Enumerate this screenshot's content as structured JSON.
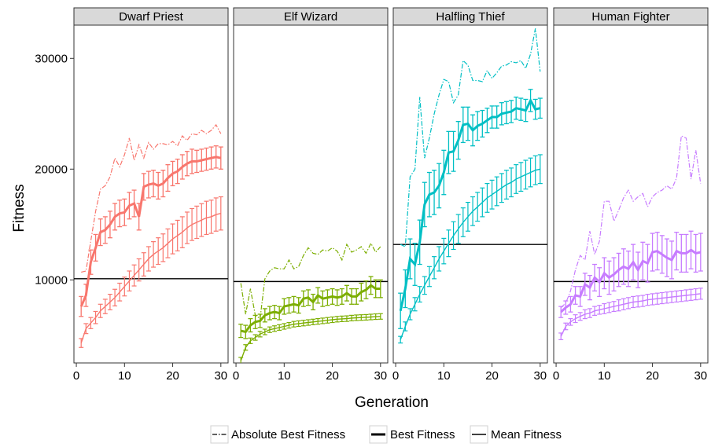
{
  "chart_data": {
    "type": "line",
    "xlabel": "Generation",
    "ylabel": "Fitness",
    "xlim": [
      -0.5,
      31.5
    ],
    "ylim": [
      2500,
      33000
    ],
    "xticks": [
      0,
      10,
      20,
      30
    ],
    "yticks": [
      10000,
      20000,
      30000
    ],
    "x_tick_labels": [
      "0",
      "10",
      "20",
      "30"
    ],
    "y_tick_labels": [
      "10000",
      "20000",
      "30000"
    ],
    "grid": false,
    "legend": {
      "position": "bottom",
      "entries": [
        {
          "label": "Absolute Best Fitness",
          "linetype": "dotdash"
        },
        {
          "label": "Best Fitness",
          "linetype": "thick"
        },
        {
          "label": "Mean Fitness",
          "linetype": "solid"
        }
      ]
    },
    "panels": [
      {
        "label": "Dwarf Priest",
        "color": "#F8766D",
        "hline": 10100,
        "absolute_best": [
          10700,
          10800,
          13500,
          16200,
          18200,
          18500,
          19300,
          21000,
          20200,
          21300,
          22800,
          20800,
          22200,
          21000,
          22400,
          21800,
          22300,
          22300,
          22200,
          22500,
          22100,
          23000,
          22600,
          23200,
          23100,
          23500,
          23200,
          23500,
          24000,
          23200
        ],
        "best": {
          "values": [
            7600,
            8600,
            11600,
            12900,
            14300,
            14500,
            15000,
            15700,
            16000,
            16100,
            16700,
            16900,
            15700,
            18400,
            18600,
            18700,
            18500,
            18700,
            19200,
            19600,
            19800,
            20200,
            20500,
            20700,
            20700,
            20800,
            20900,
            21000,
            21100,
            21000
          ],
          "err": [
            900,
            1000,
            1100,
            1200,
            1200,
            1200,
            1200,
            1200,
            1200,
            1200,
            1200,
            1200,
            1200,
            1200,
            1200,
            1200,
            1200,
            1200,
            1200,
            1100,
            1100,
            1100,
            1100,
            1100,
            1000,
            1000,
            1000,
            1000,
            1000,
            1000
          ]
        },
        "mean": {
          "values": [
            4300,
            5600,
            6100,
            6600,
            7200,
            7600,
            8000,
            8400,
            8900,
            9400,
            9900,
            10400,
            10900,
            11400,
            11900,
            12300,
            12600,
            12900,
            13300,
            13700,
            14000,
            14300,
            14700,
            15000,
            15200,
            15400,
            15600,
            15700,
            15900,
            16000
          ],
          "err": [
            400,
            450,
            500,
            550,
            600,
            650,
            700,
            750,
            800,
            850,
            900,
            950,
            1000,
            1050,
            1100,
            1150,
            1200,
            1250,
            1300,
            1350,
            1380,
            1400,
            1420,
            1440,
            1460,
            1480,
            1500,
            1500,
            1500,
            1500
          ]
        }
      },
      {
        "label": "Elf Wizard",
        "color": "#7CAE00",
        "hline": 9850,
        "absolute_best": [
          9700,
          6900,
          9200,
          6800,
          6500,
          10100,
          10800,
          11100,
          11000,
          11000,
          11800,
          11000,
          11200,
          12200,
          12900,
          12400,
          12300,
          12700,
          12600,
          12900,
          12600,
          11800,
          13200,
          12500,
          12700,
          13000,
          12400,
          13300,
          12500,
          13000
        ],
        "best": {
          "values": [
            5400,
            5300,
            5900,
            6200,
            6300,
            6800,
            7000,
            7100,
            7000,
            7600,
            7700,
            7800,
            7700,
            8300,
            8400,
            8000,
            8600,
            8300,
            8400,
            8500,
            8400,
            8500,
            8800,
            8500,
            8500,
            8900,
            9100,
            9500,
            9200,
            9200
          ],
          "err": [
            600,
            600,
            600,
            600,
            600,
            600,
            600,
            600,
            600,
            700,
            700,
            700,
            700,
            700,
            700,
            700,
            700,
            700,
            700,
            700,
            700,
            700,
            700,
            700,
            700,
            800,
            800,
            800,
            800,
            800
          ]
        },
        "mean": {
          "values": [
            2700,
            3900,
            4500,
            4800,
            5100,
            5300,
            5500,
            5600,
            5700,
            5800,
            5900,
            6000,
            6050,
            6100,
            6150,
            6200,
            6250,
            6300,
            6350,
            6400,
            6450,
            6480,
            6500,
            6550,
            6580,
            6600,
            6620,
            6650,
            6680,
            6700
          ],
          "err": [
            300,
            250,
            250,
            250,
            250,
            250,
            250,
            250,
            250,
            250,
            250,
            250,
            250,
            250,
            250,
            250,
            250,
            250,
            250,
            250,
            250,
            250,
            250,
            250,
            250,
            250,
            250,
            250,
            250,
            250
          ]
        }
      },
      {
        "label": "Halfling Thief",
        "color": "#00BFC4",
        "hline": 13200,
        "absolute_best": [
          13200,
          13000,
          19300,
          20000,
          26500,
          21000,
          22800,
          25000,
          26700,
          28100,
          27900,
          26000,
          26700,
          29800,
          29400,
          28000,
          28000,
          27900,
          28900,
          28200,
          28700,
          29300,
          29400,
          29700,
          29600,
          29800,
          29100,
          30400,
          32700,
          28800
        ],
        "best": {
          "values": [
            7200,
            9200,
            11900,
            11400,
            13400,
            16800,
            17700,
            17900,
            18500,
            19700,
            21500,
            21600,
            22600,
            24000,
            24100,
            23500,
            23900,
            24100,
            24400,
            24700,
            24700,
            25000,
            25100,
            25200,
            25500,
            25400,
            25300,
            26200,
            25400,
            25500
          ],
          "err": [
            1600,
            1700,
            1800,
            1900,
            2000,
            2000,
            2000,
            2000,
            2000,
            2000,
            1900,
            1800,
            1700,
            1600,
            1500,
            1400,
            1300,
            1200,
            1100,
            1000,
            1000,
            1000,
            1000,
            1000,
            1000,
            1000,
            1000,
            1000,
            900,
            900
          ]
        },
        "mean": {
          "values": [
            4600,
            5800,
            6900,
            7800,
            8700,
            9500,
            10300,
            11100,
            11900,
            12600,
            13300,
            14000,
            14600,
            15200,
            15700,
            16200,
            16600,
            17000,
            17400,
            17700,
            18000,
            18300,
            18600,
            18800,
            19100,
            19300,
            19500,
            19700,
            19900,
            20000
          ],
          "err": [
            300,
            400,
            500,
            600,
            700,
            800,
            900,
            1000,
            1100,
            1150,
            1200,
            1250,
            1300,
            1300,
            1300,
            1300,
            1300,
            1300,
            1300,
            1300,
            1300,
            1300,
            1300,
            1300,
            1300,
            1300,
            1300,
            1300,
            1300,
            1300
          ]
        }
      },
      {
        "label": "Human Fighter",
        "color": "#C77CFF",
        "hline": 9850,
        "absolute_best": [
          7500,
          7900,
          9000,
          10900,
          12200,
          11800,
          14400,
          12300,
          13500,
          17100,
          17100,
          15300,
          16300,
          17400,
          18100,
          17100,
          17500,
          17800,
          16600,
          17500,
          17900,
          18100,
          18500,
          18200,
          19200,
          23000,
          22800,
          19100,
          21700,
          18700
        ],
        "best": {
          "values": [
            7100,
            7500,
            7800,
            8600,
            8500,
            9600,
            9300,
            10200,
            9800,
            10600,
            10200,
            10500,
            10900,
            11200,
            11000,
            11600,
            10900,
            11700,
            11500,
            12500,
            12600,
            12300,
            12000,
            11800,
            12600,
            12400,
            12400,
            12700,
            12400,
            12500
          ],
          "err": [
            500,
            600,
            700,
            800,
            900,
            1000,
            1100,
            1200,
            1300,
            1400,
            1500,
            1500,
            1500,
            1600,
            1600,
            1600,
            1600,
            1700,
            1700,
            1700,
            1700,
            1700,
            1700,
            1700,
            1700,
            1700,
            1700,
            1700,
            1700,
            1700
          ]
        },
        "mean": {
          "values": [
            4900,
            5800,
            6200,
            6500,
            6700,
            6900,
            7000,
            7200,
            7300,
            7400,
            7500,
            7600,
            7700,
            7800,
            7900,
            8000,
            8050,
            8100,
            8200,
            8250,
            8300,
            8350,
            8400,
            8450,
            8500,
            8550,
            8600,
            8650,
            8700,
            8750
          ],
          "err": [
            300,
            300,
            300,
            350,
            350,
            400,
            400,
            400,
            400,
            450,
            450,
            450,
            500,
            500,
            500,
            500,
            500,
            500,
            500,
            500,
            500,
            500,
            500,
            500,
            500,
            500,
            500,
            500,
            500,
            500
          ]
        }
      }
    ]
  }
}
